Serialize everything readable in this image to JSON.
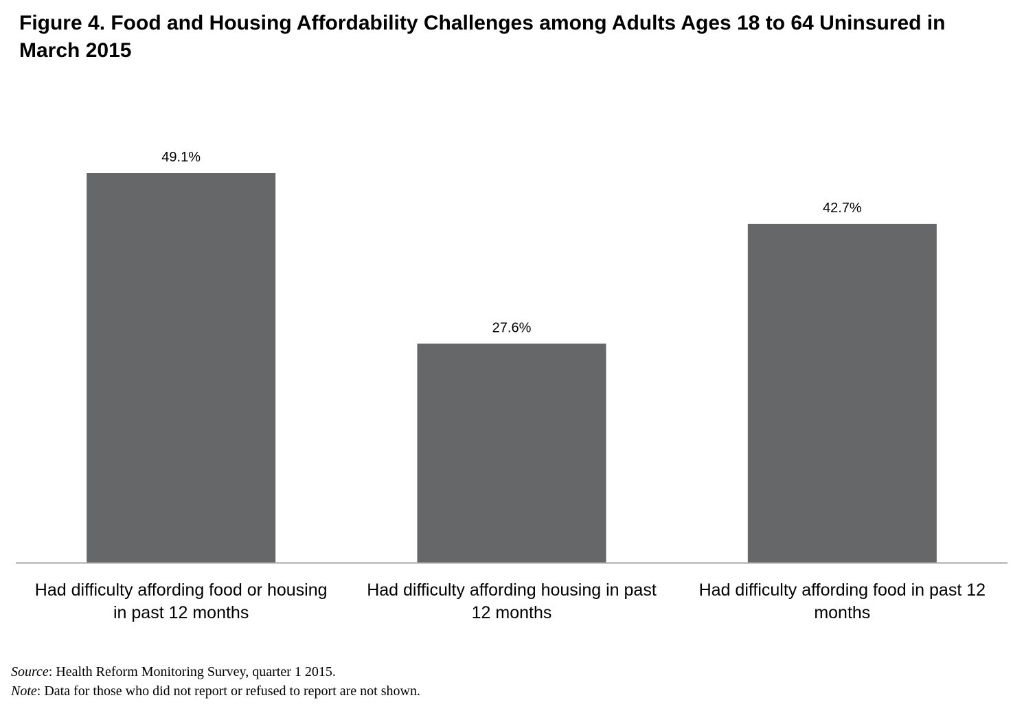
{
  "chart_data": {
    "type": "bar",
    "title": "Figure 4.  Food and Housing Affordability Challenges among Adults Ages 18 to 64 Uninsured in March 2015",
    "categories": [
      "Had difficulty affording food or housing in past 12 months",
      "Had difficulty affording housing in past 12 months",
      "Had difficulty affording food in past 12 months"
    ],
    "category_lines": [
      [
        "Had difficulty affording food or housing",
        "in past 12 months"
      ],
      [
        "Had difficulty affording housing in past",
        "12 months"
      ],
      [
        "Had difficulty affording food in past 12",
        "months"
      ]
    ],
    "values": [
      49.1,
      27.6,
      42.7
    ],
    "data_labels": [
      "49.1%",
      "27.6%",
      "42.7%"
    ],
    "xlabel": "",
    "ylabel": "",
    "ylim": [
      0,
      55
    ],
    "grid": false,
    "legend": "none",
    "colors": {
      "bar": "#666769",
      "axis": "#a6a6a6"
    }
  },
  "footnotes": {
    "source_label": "Source",
    "source_text": ": Health Reform Monitoring Survey, quarter 1 2015.",
    "note_label": "Note",
    "note_text": ": Data for those who did not report or refused to report are not shown."
  }
}
